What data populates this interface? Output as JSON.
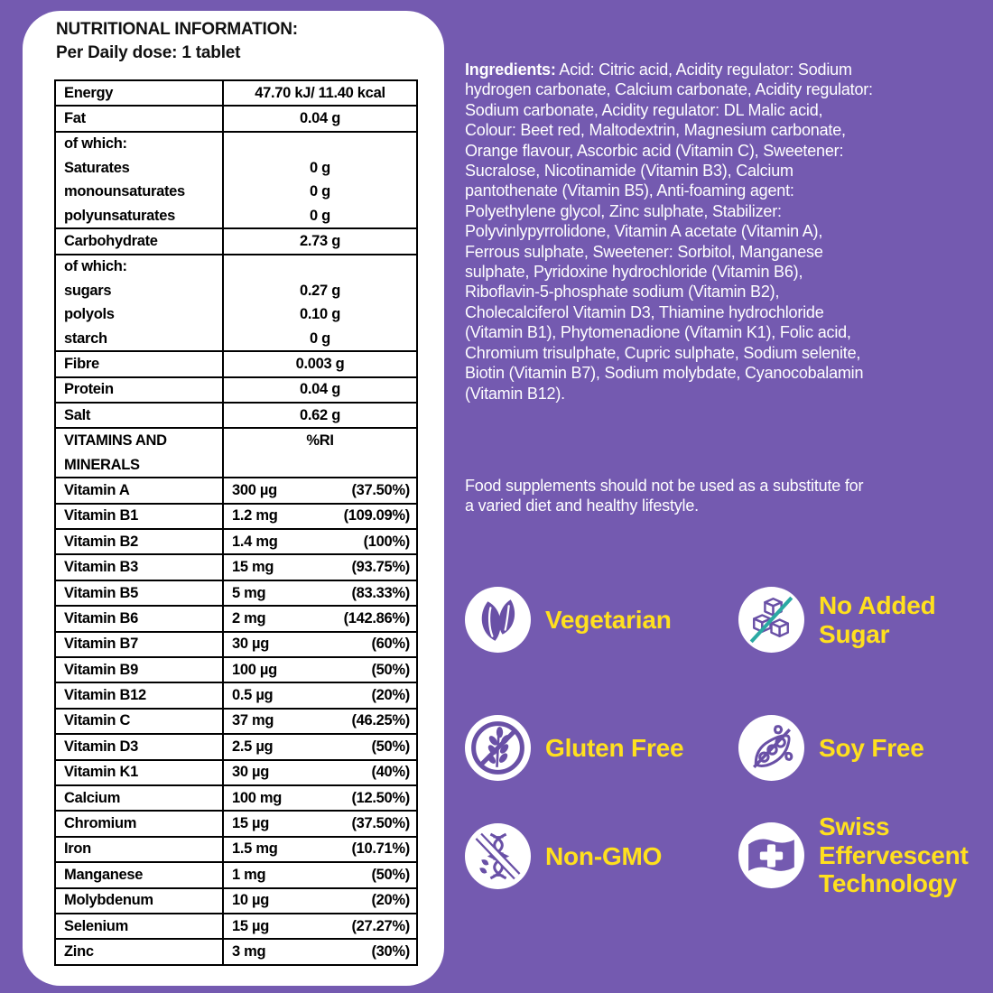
{
  "panel": {
    "title": "NUTRITIONAL INFORMATION:",
    "subtitle": "Per Daily dose: 1 tablet",
    "table": {
      "rows": [
        {
          "type": "simple",
          "label": "Energy",
          "value": "47.70 kJ/ 11.40 kcal"
        },
        {
          "type": "simple",
          "label": "Fat",
          "value": "0.04 g"
        },
        {
          "type": "group",
          "header": "of which:",
          "items": [
            [
              "Saturates",
              "0 g"
            ],
            [
              "monounsaturates",
              "0 g"
            ],
            [
              "polyunsaturates",
              "0 g"
            ]
          ]
        },
        {
          "type": "simple",
          "label": "Carbohydrate",
          "value": "2.73 g"
        },
        {
          "type": "group",
          "header": "of which:",
          "items": [
            [
              "sugars",
              "0.27 g"
            ],
            [
              "polyols",
              "0.10 g"
            ],
            [
              "starch",
              "0 g"
            ]
          ]
        },
        {
          "type": "simple",
          "label": "Fibre",
          "value": "0.003 g"
        },
        {
          "type": "simple",
          "label": "Protein",
          "value": "0.04 g"
        },
        {
          "type": "simple",
          "label": "Salt",
          "value": "0.62 g"
        },
        {
          "type": "section",
          "label": "VITAMINS AND MINERALS",
          "label_lines": [
            "VITAMINS AND",
            "MINERALS"
          ],
          "value": "%RI"
        }
      ],
      "vitamin_rows": [
        {
          "name": "Vitamin A",
          "amount": "300 µg",
          "ri": "(37.50%)"
        },
        {
          "name": "Vitamin B1",
          "amount": "1.2 mg",
          "ri": "(109.09%)"
        },
        {
          "name": "Vitamin B2",
          "amount": "1.4 mg",
          "ri": "(100%)"
        },
        {
          "name": "Vitamin B3",
          "amount": "15 mg",
          "ri": "(93.75%)"
        },
        {
          "name": "Vitamin B5",
          "amount": "5 mg",
          "ri": "(83.33%)"
        },
        {
          "name": "Vitamin B6",
          "amount": "2 mg",
          "ri": "(142.86%)"
        },
        {
          "name": "Vitamin B7",
          "amount": "30 µg",
          "ri": "(60%)"
        },
        {
          "name": "Vitamin B9",
          "amount": "100 µg",
          "ri": "(50%)"
        },
        {
          "name": "Vitamin B12",
          "amount": "0.5 µg",
          "ri": "(20%)"
        },
        {
          "name": "Vitamin C",
          "amount": "37 mg",
          "ri": "(46.25%)"
        },
        {
          "name": "Vitamin D3",
          "amount": "2.5 µg",
          "ri": "(50%)"
        },
        {
          "name": "Vitamin K1",
          "amount": "30 µg",
          "ri": "(40%)"
        },
        {
          "name": "Calcium",
          "amount": "100 mg",
          "ri": "(12.50%)"
        },
        {
          "name": "Chromium",
          "amount": "15 µg",
          "ri": "(37.50%)"
        },
        {
          "name": "Iron",
          "amount": "1.5 mg",
          "ri": "(10.71%)"
        },
        {
          "name": "Manganese",
          "amount": "1 mg",
          "ri": "(50%)"
        },
        {
          "name": "Molybdenum",
          "amount": "10 µg",
          "ri": "(20%)"
        },
        {
          "name": "Selenium",
          "amount": "15 µg",
          "ri": "(27.27%)"
        },
        {
          "name": "Zinc",
          "amount": "3 mg",
          "ri": "(30%)"
        }
      ]
    }
  },
  "right": {
    "ingredients_label": "Ingredients:",
    "ingredients_text": "Acid: Citric acid, Acidity regulator: Sodium hydrogen carbonate, Calcium carbonate, Acidity regulator: Sodium carbonate, Acidity regulator: DL Malic acid, Colour: Beet red, Maltodextrin, Magnesium carbonate, Orange flavour, Ascorbic acid (Vitamin C), Sweetener: Sucralose, Nicotinamide (Vitamin B3), Calcium pantothenate (Vitamin B5), Anti-foaming agent: Polyethylene glycol, Zinc sulphate, Stabilizer: Polyvinlypyrrolidone, Vitamin A acetate (Vitamin A), Ferrous sulphate, Sweetener: Sorbitol, Manganese sulphate, Pyridoxine hydrochloride (Vitamin B6), Riboflavin-5-phosphate sodium (Vitamin B2), Cholecalciferol Vitamin D3, Thiamine hydrochloride (Vitamin B1), Phytomenadione (Vitamin K1), Folic acid, Chromium trisulphate, Cupric sulphate, Sodium selenite, Biotin (Vitamin B7), Sodium molybdate, Cyanocobalamin (Vitamin B12).",
    "disclaimer": "Food supplements should not be used as a substitute for a varied diet and healthy lifestyle.",
    "badges": [
      {
        "label": "Vegetarian",
        "icon": "vegetarian-icon"
      },
      {
        "label": "No Added Sugar",
        "icon": "no-added-sugar-icon"
      },
      {
        "label": "Gluten Free",
        "icon": "gluten-free-icon"
      },
      {
        "label": "Soy Free",
        "icon": "soy-free-icon"
      },
      {
        "label": "Non-GMO",
        "icon": "non-gmo-icon"
      },
      {
        "label": "Swiss Effervescent Technology",
        "icon": "swiss-effervescent-icon"
      }
    ]
  },
  "colors": {
    "background_purple": "#745AB0",
    "panel_white": "#FFFFFF",
    "text_black": "#111111",
    "text_white": "#FFFFFF",
    "badge_yellow": "#FFE01E",
    "icon_purple": "#6950A6",
    "slash_teal": "#2AA9A3"
  }
}
